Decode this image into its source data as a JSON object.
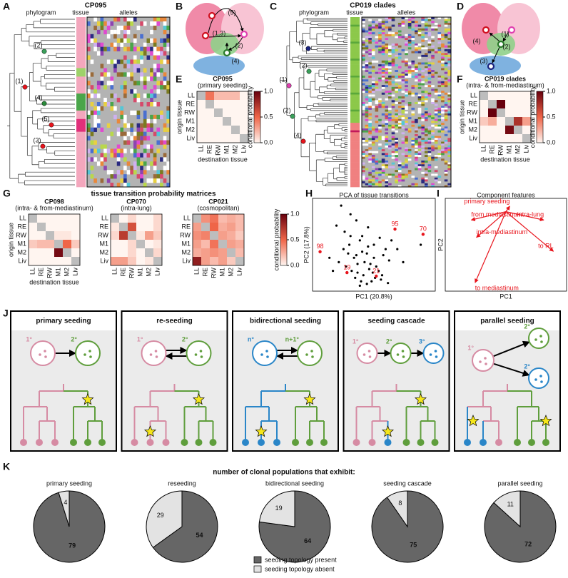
{
  "figure": {
    "panel_labels": [
      "A",
      "B",
      "C",
      "D",
      "E",
      "F",
      "G",
      "H",
      "I",
      "J",
      "K"
    ],
    "A": {
      "title": "CP095",
      "headers": [
        "phylogram",
        "tissue",
        "alleles"
      ],
      "nodes": [
        "(2)",
        "(1)",
        "(4)",
        "(5)",
        "(3)"
      ]
    },
    "B": {
      "sites": [
        "(5)",
        "(1,3)",
        "(2)",
        "(4)"
      ]
    },
    "C": {
      "title": "CP019 clades",
      "headers": [
        "phylogram",
        "tissue",
        "alleles"
      ],
      "nodes": [
        "(3)",
        "(1)",
        "(2)",
        "(2)",
        "(4)"
      ]
    },
    "D": {
      "sites": [
        "(4)",
        "(1)",
        "(2)",
        "(3)"
      ]
    },
    "heatmap": {
      "tissues": [
        "LL",
        "RE",
        "RW",
        "M1",
        "M2",
        "Liv"
      ],
      "ylabel": "origin tissue",
      "xlabel": "destination tissue",
      "colorbar_label": "conditional probability",
      "clim": [
        0,
        1
      ],
      "cticks": [
        {
          "value": 0,
          "label": "0.0"
        },
        {
          "value": 0.5,
          "label": "0.5"
        },
        {
          "value": 1,
          "label": "1.0"
        }
      ],
      "colors": [
        "#fff5f0",
        "#ef6548",
        "#67000d"
      ],
      "diagonal_color": "#bdbdbd"
    },
    "E": {
      "title": "CP095",
      "subtitle": "(primary seeding)",
      "matrix": [
        [
          null,
          0.45,
          0.2,
          0.2,
          0.2,
          0
        ],
        [
          0,
          null,
          0,
          0,
          0,
          0
        ],
        [
          0,
          0,
          null,
          0,
          0,
          0
        ],
        [
          0,
          0,
          0,
          null,
          0,
          0
        ],
        [
          0,
          0,
          0,
          0,
          null,
          0
        ],
        [
          0,
          0,
          0,
          0,
          0,
          null
        ]
      ]
    },
    "F": {
      "title": "CP019 clades",
      "subtitle": "(intra- & from-mediastinum)",
      "matrix": [
        [
          null,
          0,
          0,
          0,
          0,
          0
        ],
        [
          0,
          null,
          1.0,
          0,
          0,
          0
        ],
        [
          0,
          1.0,
          null,
          0,
          0,
          0
        ],
        [
          0.15,
          0.25,
          0,
          null,
          0.75,
          0.3
        ],
        [
          0,
          0,
          0,
          0.95,
          null,
          0
        ],
        [
          0,
          0,
          0,
          0,
          0,
          null
        ]
      ]
    },
    "G": {
      "title": "tissue transition probability matrices",
      "matrices": [
        {
          "title": "CP098",
          "subtitle": "(intra- & from-mediastinum)",
          "matrix": [
            [
              null,
              0,
              0,
              0,
              0,
              0
            ],
            [
              0,
              null,
              0,
              0,
              0,
              0
            ],
            [
              0,
              0,
              null,
              0.05,
              0.05,
              0
            ],
            [
              0.15,
              0.2,
              0.2,
              null,
              0.5,
              0.15
            ],
            [
              0,
              0,
              0,
              0.95,
              null,
              0
            ],
            [
              0,
              0,
              0,
              0,
              0,
              null
            ]
          ]
        },
        {
          "title": "CP070",
          "subtitle": "(intra-lung)",
          "matrix": [
            [
              null,
              0,
              0.1,
              0,
              0,
              0.1
            ],
            [
              0.05,
              null,
              0.6,
              0,
              0,
              0.1
            ],
            [
              0.1,
              0.7,
              null,
              0.05,
              0.3,
              0.15
            ],
            [
              0,
              0,
              0.1,
              null,
              0,
              0.05
            ],
            [
              0,
              0,
              0.1,
              0,
              null,
              0.1
            ],
            [
              0.3,
              0.3,
              0.15,
              0,
              0.05,
              null
            ]
          ]
        },
        {
          "title": "CP021",
          "subtitle": "(cosmopolitan)",
          "matrix": [
            [
              null,
              0.35,
              0.45,
              0.2,
              0.25,
              0.2
            ],
            [
              0.3,
              null,
              0.5,
              0.25,
              0.3,
              0.2
            ],
            [
              0.35,
              0.4,
              null,
              0.3,
              0.25,
              0.15
            ],
            [
              0.3,
              0.2,
              0.45,
              null,
              0.3,
              0.25
            ],
            [
              0.25,
              0.3,
              0.35,
              0.3,
              null,
              0.2
            ],
            [
              0.85,
              0.3,
              0.2,
              0.3,
              0.15,
              null
            ]
          ]
        }
      ]
    },
    "H": {
      "type": "scatter",
      "title": "PCA of tissue transitions",
      "xlabel": "PC1 (20.8%)",
      "ylabel": "PC2 (17.8%)",
      "xlim": [
        0,
        100
      ],
      "ylim": [
        0,
        100
      ],
      "color": "#000000",
      "highlight_color": "#e8141c",
      "x": [
        22,
        30,
        35,
        18,
        25,
        40,
        45,
        38,
        50,
        55,
        60,
        28,
        33,
        42,
        47,
        52,
        58,
        63,
        20,
        26,
        31,
        36,
        41,
        46,
        51,
        56,
        24,
        29,
        34,
        39,
        44,
        49,
        54,
        35,
        40,
        45,
        50,
        30,
        65,
        70,
        15,
        12,
        38,
        48,
        57,
        90,
        75,
        62,
        44,
        36
      ],
      "y": [
        95,
        85,
        78,
        72,
        65,
        60,
        70,
        55,
        50,
        58,
        45,
        40,
        35,
        30,
        28,
        25,
        38,
        32,
        30,
        25,
        20,
        18,
        15,
        22,
        12,
        10,
        45,
        50,
        12,
        8,
        5,
        18,
        20,
        38,
        42,
        48,
        35,
        60,
        55,
        45,
        20,
        35,
        3,
        8,
        15,
        50,
        30,
        6,
        40,
        28
      ],
      "annotations": [
        {
          "text": "98",
          "x": 4,
          "y": 42
        },
        {
          "text": "95",
          "x": 68,
          "y": 68
        },
        {
          "text": "70",
          "x": 92,
          "y": 62
        },
        {
          "text": "19",
          "x": 27,
          "y": 18
        },
        {
          "text": "21",
          "x": 52,
          "y": 14
        }
      ]
    },
    "I": {
      "title": "Component features",
      "xlabel": "PC1",
      "ylabel": "PC2",
      "xlim": [
        -0.9,
        0.9
      ],
      "ylim": [
        -1.1,
        0.15
      ],
      "color": "#e8141c",
      "vectors": [
        {
          "name": "from mediastinum",
          "x": -0.54,
          "y": -0.12
        },
        {
          "name": "primary seeding",
          "x": 0.06,
          "y": 0.08
        },
        {
          "name": "intra-lung",
          "x": 0.59,
          "y": -0.12
        },
        {
          "name": "intra-mediastinum",
          "x": -0.46,
          "y": -0.37
        },
        {
          "name": "to RL",
          "x": 0.74,
          "y": -0.57
        },
        {
          "name": "to mediastinum",
          "x": -0.48,
          "y": -1.02
        }
      ]
    },
    "J": {
      "panels": [
        {
          "title": "primary seeding",
          "sites": [
            "1°",
            "2°"
          ]
        },
        {
          "title": "re-seeding",
          "sites": [
            "1°",
            "2°"
          ]
        },
        {
          "title": "bidirectional seeding",
          "sites": [
            "n°",
            "n+1°"
          ]
        },
        {
          "title": "seeding cascade",
          "sites": [
            "1°",
            "2°",
            "3°"
          ]
        },
        {
          "title": "parallel seeding",
          "sites": [
            "1°",
            "2°",
            "2°"
          ]
        }
      ]
    },
    "K": {
      "chart_data": {
        "type": "pie",
        "title": "number of clonal populations that exhibit:",
        "categories": [
          "primary seeding",
          "reseeding",
          "bidirectional seeding",
          "seeding cascade",
          "parallel seeding"
        ],
        "series": [
          {
            "name": "seeding topology present",
            "color": "#666666",
            "values": [
              79,
              54,
              64,
              75,
              72
            ]
          },
          {
            "name": "seeding topology absent",
            "color": "#e3e3e3",
            "values": [
              4,
              29,
              19,
              8,
              11
            ]
          }
        ]
      }
    }
  }
}
